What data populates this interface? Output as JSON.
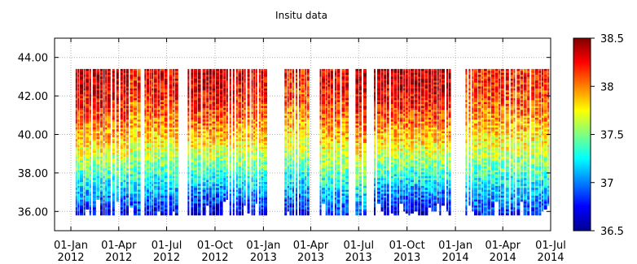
{
  "chart_data": {
    "type": "heatmap",
    "title": "Insitu data",
    "xlabel": "",
    "ylabel": "",
    "x_ticks": [
      {
        "date": "2012-01-01",
        "line1": "01-Jan",
        "line2": "2012"
      },
      {
        "date": "2012-04-01",
        "line1": "01-Apr",
        "line2": "2012"
      },
      {
        "date": "2012-07-01",
        "line1": "01-Jul",
        "line2": "2012"
      },
      {
        "date": "2012-10-01",
        "line1": "01-Oct",
        "line2": "2012"
      },
      {
        "date": "2013-01-01",
        "line1": "01-Jan",
        "line2": "2013"
      },
      {
        "date": "2013-04-01",
        "line1": "01-Apr",
        "line2": "2013"
      },
      {
        "date": "2013-07-01",
        "line1": "01-Jul",
        "line2": "2013"
      },
      {
        "date": "2013-10-01",
        "line1": "01-Oct",
        "line2": "2013"
      },
      {
        "date": "2014-01-01",
        "line1": "01-Jan",
        "line2": "2014"
      },
      {
        "date": "2014-04-01",
        "line1": "01-Apr",
        "line2": "2014"
      },
      {
        "date": "2014-07-01",
        "line1": "01-Jul",
        "line2": "2014"
      }
    ],
    "xlim": [
      "2011-12-01",
      "2014-07-01"
    ],
    "y_ticks": [
      "36.00",
      "38.00",
      "40.00",
      "42.00",
      "44.00"
    ],
    "y_tick_values": [
      36,
      38,
      40,
      42,
      44
    ],
    "ylim": [
      35.0,
      45.0
    ],
    "grid": true,
    "colorbar": {
      "colormap": "jet",
      "range": [
        36.5,
        38.5
      ],
      "ticks": [
        "36.5",
        "37",
        "37.5",
        "38",
        "38.5"
      ],
      "tick_values": [
        36.5,
        37,
        37.5,
        38,
        38.5
      ]
    },
    "data_top_y": 43.4,
    "data_bottom_y": 35.9,
    "profile_groups": [
      {
        "start": "2012-01-10",
        "end": "2012-04-18",
        "value_top": 38.4,
        "value_bottom": 36.7
      },
      {
        "start": "2012-04-22",
        "end": "2012-05-12",
        "value_top": 38.2,
        "value_bottom": 36.8
      },
      {
        "start": "2012-05-20",
        "end": "2012-07-24",
        "value_top": 38.3,
        "value_bottom": 36.7
      },
      {
        "start": "2012-08-10",
        "end": "2012-11-05",
        "value_top": 38.4,
        "value_bottom": 36.6
      },
      {
        "start": "2012-11-10",
        "end": "2013-01-10",
        "value_top": 38.3,
        "value_bottom": 36.7
      },
      {
        "start": "2013-02-10",
        "end": "2013-03-25",
        "value_top": 38.2,
        "value_bottom": 36.7
      },
      {
        "start": "2013-04-18",
        "end": "2013-06-10",
        "value_top": 38.3,
        "value_bottom": 36.8
      },
      {
        "start": "2013-06-25",
        "end": "2013-07-10",
        "value_top": 38.4,
        "value_bottom": 36.9
      },
      {
        "start": "2013-07-30",
        "end": "2013-12-20",
        "value_top": 38.4,
        "value_bottom": 36.6
      },
      {
        "start": "2014-01-20",
        "end": "2014-07-01",
        "value_top": 38.2,
        "value_bottom": 36.8
      }
    ]
  }
}
